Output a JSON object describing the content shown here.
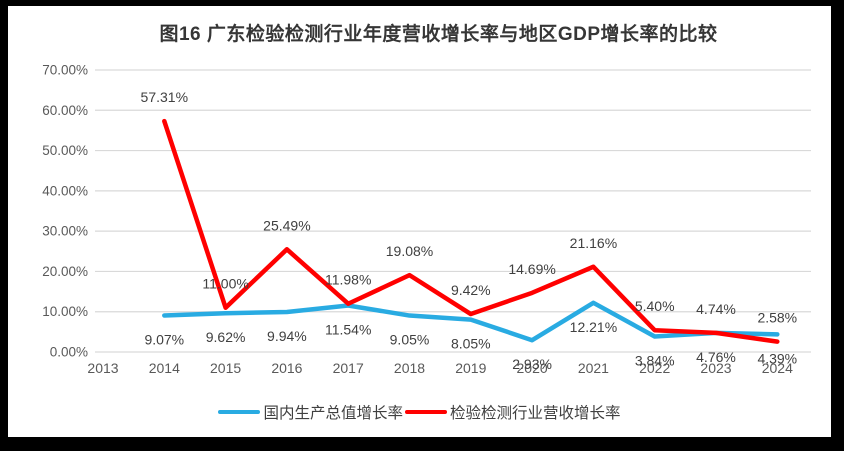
{
  "title": "图16 广东检验检测行业年度营收增长率与地区GDP增长率的比较",
  "colors": {
    "frame_background": "#000000",
    "chart_background": "#ffffff",
    "gdp_line": "#29abe2",
    "industry_line": "#ff0000",
    "gridline": "#d9d9d9",
    "axis_text": "#595959",
    "data_label_text": "#404040",
    "title_text": "#363636"
  },
  "chart_data": {
    "type": "line",
    "title": "图16 广东检验检测行业年度营收增长率与地区GDP增长率的比较",
    "categories": [
      "2013",
      "2014",
      "2015",
      "2016",
      "2017",
      "2018",
      "2019",
      "2020",
      "2021",
      "2022",
      "2023",
      "2024"
    ],
    "series": [
      {
        "name": "国内生产总值增长率",
        "color": "#29abe2",
        "label_position": "below",
        "values": [
          null,
          9.07,
          9.62,
          9.94,
          11.54,
          9.05,
          8.05,
          2.93,
          12.21,
          3.84,
          4.76,
          4.39
        ],
        "labels": [
          null,
          "9.07%",
          "9.62%",
          "9.94%",
          "11.54%",
          "9.05%",
          "8.05%",
          "2.93%",
          "12.21%",
          "3.84%",
          "4.76%",
          "4.39%"
        ]
      },
      {
        "name": "检验检测行业营收增长率",
        "color": "#ff0000",
        "label_position": "above",
        "values": [
          null,
          57.31,
          11.0,
          25.49,
          11.98,
          19.08,
          9.42,
          14.69,
          21.16,
          5.4,
          4.74,
          2.58
        ],
        "labels": [
          null,
          "57.31%",
          "11.00%",
          "25.49%",
          "11.98%",
          "19.08%",
          "9.42%",
          "14.69%",
          "21.16%",
          "5.40%",
          "4.74%",
          "2.58%"
        ]
      }
    ],
    "yaxis": {
      "min": 0,
      "max": 70,
      "tick_values": [
        0,
        10,
        20,
        30,
        40,
        50,
        60,
        70
      ],
      "tick_labels": [
        "0.00%",
        "10.00%",
        "20.00%",
        "30.00%",
        "40.00%",
        "50.00%",
        "60.00%",
        "70.00%"
      ]
    },
    "grid": true,
    "legend_position": "bottom"
  }
}
